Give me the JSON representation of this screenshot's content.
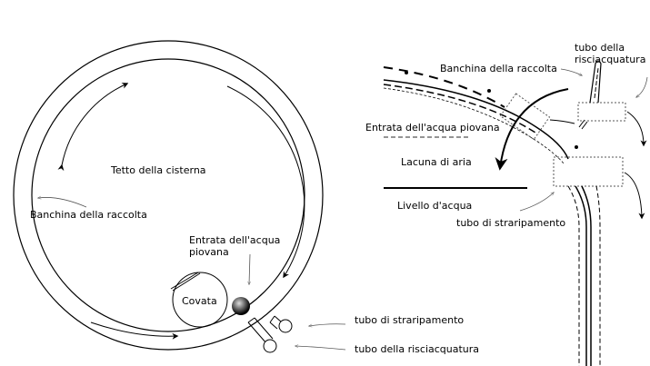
{
  "left": {
    "roof_label": "Tetto della cisterna",
    "bank_label": "Banchina della raccolta",
    "inlet_label_line1": "Entrata dell'acqua",
    "inlet_label_line2": "piovana",
    "brood_label": "Covata",
    "overflow_label": "tubo di straripamento",
    "rinse_label": "tubo della risciacquatura"
  },
  "right": {
    "bank_label": "Banchina della raccolta",
    "rinse_label_line1": "tubo della",
    "rinse_label_line2": "risciacquatura",
    "inlet_label": "Entrata dell'acqua piovana",
    "air_gap_label": "Lacuna di aria",
    "water_level_label": "Livello d'acqua",
    "overflow_label": "tubo di straripamento"
  }
}
